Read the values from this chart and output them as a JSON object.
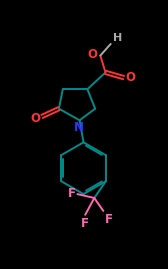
{
  "bg_color": "#000000",
  "bond_color": "#008B8B",
  "oxygen_color": "#FF3333",
  "nitrogen_color": "#3333FF",
  "fluorine_color": "#FF69B4",
  "hydrogen_color": "#AAAAAA",
  "line_width": 1.4,
  "fig_width": 1.68,
  "fig_height": 2.69,
  "dpi": 100,
  "xlim": [
    0,
    10
  ],
  "ylim": [
    0,
    16
  ]
}
